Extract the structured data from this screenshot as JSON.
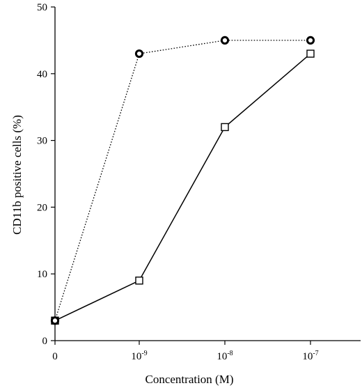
{
  "chart_data": {
    "type": "line",
    "title": "",
    "xlabel": "Concentration (M)",
    "ylabel": "CD11b positive cells (%)",
    "categories": [
      {
        "base": "0",
        "exp": ""
      },
      {
        "base": "10",
        "exp": "-9"
      },
      {
        "base": "10",
        "exp": "-8"
      },
      {
        "base": "10",
        "exp": "-7"
      }
    ],
    "ylim": [
      0,
      50
    ],
    "yticks": [
      "0",
      "10",
      "20",
      "30",
      "40",
      "50"
    ],
    "grid": false,
    "series": [
      {
        "marker": "circle",
        "line": "dotted",
        "values": [
          3,
          43,
          45,
          45
        ]
      },
      {
        "marker": "square",
        "line": "solid",
        "values": [
          3,
          9,
          32,
          43
        ]
      }
    ]
  }
}
